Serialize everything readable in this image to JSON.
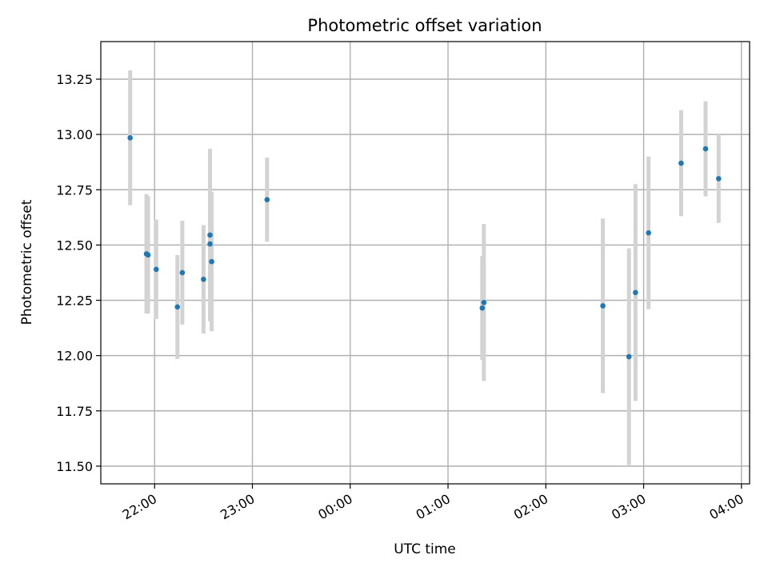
{
  "chart_data": {
    "type": "scatter",
    "title": "Photometric offset variation",
    "xlabel": "UTC time",
    "ylabel": "Photometric offset",
    "x_axis": {
      "kind": "time",
      "range": [
        "21:27",
        "04:05"
      ],
      "ticks": [
        "22:00",
        "23:00",
        "00:00",
        "01:00",
        "02:00",
        "03:00",
        "04:00"
      ]
    },
    "ylim": [
      11.42,
      13.42
    ],
    "yticks": [
      "11.50",
      "11.75",
      "12.00",
      "12.25",
      "12.50",
      "12.75",
      "13.00",
      "13.25"
    ],
    "grid": true,
    "colors": {
      "point": "#1f77b4",
      "errorbar": "#d3d3d3",
      "grid": "#b0b0b0"
    },
    "points": [
      {
        "t": "21:45",
        "y": 12.985,
        "err": 0.305
      },
      {
        "t": "21:55",
        "y": 12.46,
        "err": 0.27
      },
      {
        "t": "21:56",
        "y": 12.455,
        "err": 0.265
      },
      {
        "t": "22:01",
        "y": 12.39,
        "err": 0.225
      },
      {
        "t": "22:14",
        "y": 12.22,
        "err": 0.235
      },
      {
        "t": "22:17",
        "y": 12.375,
        "err": 0.235
      },
      {
        "t": "22:30",
        "y": 12.345,
        "err": 0.245
      },
      {
        "t": "22:34",
        "y": 12.545,
        "err": 0.39
      },
      {
        "t": "22:34",
        "y": 12.505,
        "err": 0.24
      },
      {
        "t": "22:35",
        "y": 12.425,
        "err": 0.315
      },
      {
        "t": "23:09",
        "y": 12.705,
        "err": 0.19
      },
      {
        "t": "01:21",
        "y": 12.215,
        "err": 0.235
      },
      {
        "t": "01:22",
        "y": 12.24,
        "err": 0.355
      },
      {
        "t": "02:35",
        "y": 12.225,
        "err": 0.395
      },
      {
        "t": "02:51",
        "y": 11.995,
        "err": 0.49
      },
      {
        "t": "02:55",
        "y": 12.285,
        "err": 0.49
      },
      {
        "t": "03:03",
        "y": 12.555,
        "err": 0.345
      },
      {
        "t": "03:23",
        "y": 12.87,
        "err": 0.24
      },
      {
        "t": "03:38",
        "y": 12.935,
        "err": 0.215
      },
      {
        "t": "03:46",
        "y": 12.8,
        "err": 0.2
      }
    ]
  }
}
